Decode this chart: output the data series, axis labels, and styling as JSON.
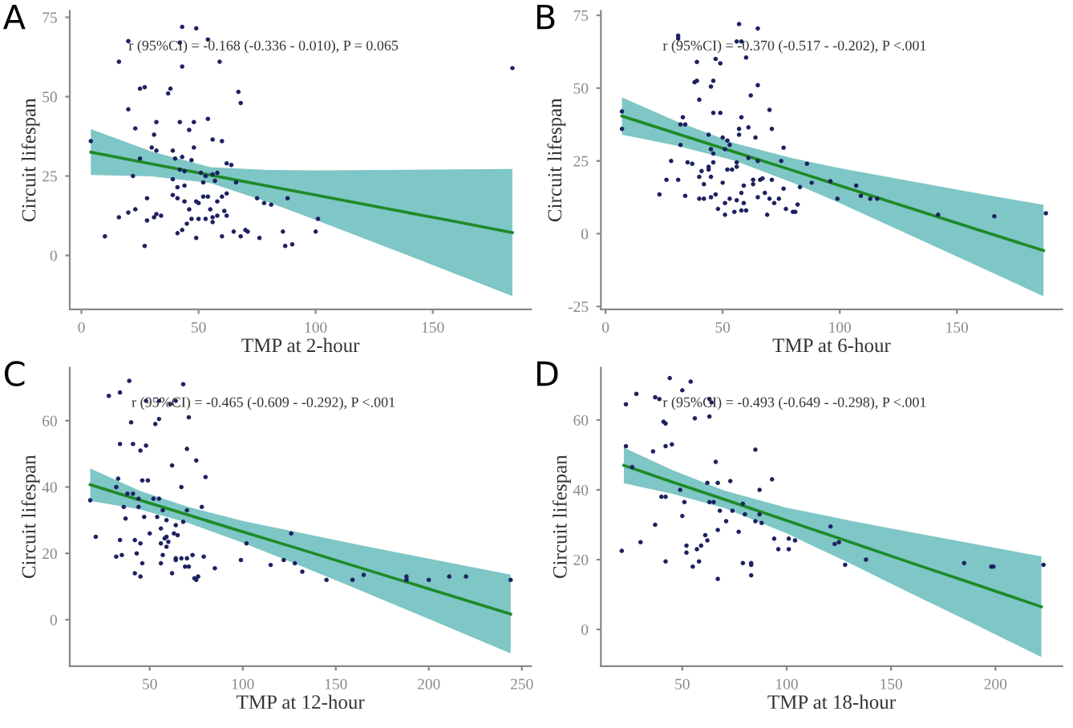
{
  "chart_data": [
    {
      "type": "scatter",
      "title": "A",
      "xlabel": "TMP at 2-hour",
      "ylabel": "Circuit lifespan",
      "annotations": [
        "r (95%CI) = -0.168 (-0.336 - 0.010), P = 0.065"
      ],
      "xlim": [
        -5,
        192
      ],
      "ylim": [
        -17,
        77
      ],
      "xticks": [
        0,
        50,
        100,
        150
      ],
      "yticks": [
        0,
        25,
        50,
        75
      ],
      "series": [
        {
          "color": "#1c2260",
          "marker": "circle",
          "x": [
            4,
            10,
            16,
            20,
            20,
            16,
            20,
            23,
            22,
            23,
            25,
            27,
            25,
            28,
            27,
            28,
            31,
            32,
            30,
            32,
            31,
            32,
            34,
            37,
            38,
            39,
            39,
            39,
            40,
            41,
            41,
            41,
            42,
            42,
            43,
            43,
            42,
            43,
            43,
            44,
            44,
            44,
            45,
            46,
            46,
            47,
            47,
            48,
            48,
            49,
            49,
            49,
            50,
            50,
            51,
            52,
            52,
            53,
            53,
            54,
            54,
            54,
            55,
            56,
            56,
            56,
            56,
            57,
            58,
            58,
            58,
            59,
            60,
            60,
            60,
            61,
            62,
            62,
            62,
            64,
            65,
            66,
            67,
            68,
            68,
            70,
            71,
            76,
            75,
            78,
            81,
            86,
            87,
            88,
            90,
            100,
            101,
            184
          ],
          "values": [
            36,
            6,
            61,
            67.5,
            46,
            12,
            13.5,
            40,
            25,
            14.5,
            52.5,
            53,
            30.5,
            18,
            3,
            11,
            38,
            42,
            34,
            33,
            12,
            13,
            12.5,
            51,
            52.5,
            33,
            24,
            19,
            30.5,
            7,
            18,
            21.5,
            27,
            42,
            31,
            72,
            67,
            59.5,
            8,
            26.5,
            22,
            17,
            10,
            14.5,
            39.5,
            11.5,
            30,
            34,
            42,
            71.5,
            17,
            5.5,
            16.5,
            11.5,
            26,
            23,
            18.5,
            25,
            11.5,
            43,
            68,
            18.5,
            14.5,
            25.5,
            36.5,
            10.5,
            12,
            23.5,
            17,
            26,
            12.5,
            61,
            36,
            6,
            18.5,
            14,
            29,
            12.5,
            19.5,
            28.5,
            7.5,
            23,
            51.5,
            6,
            48,
            8,
            7.5,
            5.5,
            18,
            16.5,
            16,
            7.5,
            3,
            18,
            3.5,
            7.5,
            11.5,
            59
          ]
        },
        {
          "type": "line",
          "color": "#1e8a28",
          "x": [
            4,
            30,
            55,
            80,
            100,
            130,
            160,
            184
          ],
          "values": [
            32.5,
            28.8,
            25.3,
            21.8,
            19.0,
            14.8,
            10.6,
            7.2
          ],
          "lower": [
            25.3,
            24.9,
            22.8,
            16.7,
            11.2,
            2.7,
            -5.9,
            -12.8
          ],
          "upper": [
            39.8,
            32.7,
            27.8,
            26.9,
            26.8,
            26.9,
            27.1,
            27.2
          ]
        }
      ]
    },
    {
      "type": "scatter",
      "title": "B",
      "xlabel": "TMP at 6-hour",
      "ylabel": "Circuit lifespan",
      "annotations": [
        "r (95%CI) = -0.370 (-0.517 - -0.202), P <.001"
      ],
      "xlim": [
        -2,
        195
      ],
      "ylim": [
        -26,
        76.5
      ],
      "xticks": [
        0,
        50,
        100,
        150
      ],
      "yticks": [
        -25,
        0,
        25,
        50,
        75
      ],
      "series": [
        {
          "color": "#1c2260",
          "marker": "circle",
          "x": [
            7,
            7,
            23,
            26,
            28,
            31,
            31,
            31,
            32,
            32,
            33,
            34,
            34,
            35,
            37,
            38,
            39,
            39,
            40,
            40,
            40,
            41,
            42,
            42,
            44,
            44,
            44,
            45,
            45,
            45,
            45,
            46,
            46,
            47,
            46,
            46,
            47,
            48,
            49,
            49,
            50,
            50,
            51,
            51,
            52,
            51,
            52,
            53,
            53,
            54,
            55,
            56,
            56,
            56,
            56,
            57,
            57,
            57,
            58,
            58,
            58,
            58,
            59,
            59,
            60,
            60,
            61,
            61,
            62,
            63,
            63,
            64,
            65,
            65,
            65,
            65,
            66,
            67,
            68,
            69,
            70,
            70,
            71,
            71,
            72,
            74,
            75,
            76,
            76,
            77,
            80,
            81,
            82,
            83,
            86,
            88,
            96,
            99,
            107,
            109,
            113,
            116,
            142,
            166,
            188
          ],
          "values": [
            42,
            36,
            13.5,
            18.5,
            25,
            68,
            67,
            18.5,
            30.5,
            37.5,
            40,
            37.5,
            13,
            24.5,
            24,
            52,
            52.5,
            59,
            46,
            12,
            19.5,
            21.5,
            12,
            17,
            34,
            23,
            22,
            19.5,
            29,
            12.5,
            50.5,
            52.5,
            41.5,
            13.5,
            24.5,
            27.5,
            60,
            8.5,
            58.5,
            41.5,
            17.5,
            33,
            10.5,
            29,
            32,
            6.5,
            22,
            12,
            30.5,
            22,
            7.5,
            66,
            24.5,
            23,
            11.5,
            34,
            36,
            72,
            40,
            14,
            8,
            66,
            10.5,
            16.5,
            8,
            60.5,
            36.5,
            26,
            47.5,
            18.5,
            17,
            33,
            51,
            25,
            12.5,
            70.5,
            18.5,
            19,
            14,
            6.5,
            42.5,
            12,
            18.5,
            36,
            10.5,
            12,
            25,
            29.5,
            15.5,
            8.5,
            7.5,
            7.5,
            10,
            16,
            24,
            17.5,
            18,
            12,
            16.5,
            13,
            12,
            12,
            6.5,
            6,
            7
          ]
        },
        {
          "type": "line",
          "color": "#1e8a28",
          "x": [
            7,
            30,
            55,
            80,
            100,
            130,
            160,
            187
          ],
          "values": [
            40.4,
            34.5,
            28.1,
            21.7,
            16.5,
            8.8,
            1.1,
            -5.8
          ],
          "lower": [
            34.0,
            30.3,
            25.1,
            17.5,
            10.5,
            -0.5,
            -11.5,
            -21.5
          ],
          "upper": [
            46.8,
            38.7,
            31.1,
            25.9,
            22.5,
            18.1,
            13.7,
            9.9
          ]
        }
      ]
    },
    {
      "type": "scatter",
      "title": "C",
      "xlabel": "TMP at 12-hour",
      "ylabel": "Circuit lifespan",
      "annotations": [
        "r (95%CI) = -0.465 (-0.609 - -0.292), P <.001"
      ],
      "xlim": [
        7,
        255
      ],
      "ylim": [
        -14,
        76
      ],
      "xticks": [
        50,
        100,
        150,
        200,
        250
      ],
      "yticks": [
        0,
        20,
        40,
        60
      ],
      "series": [
        {
          "color": "#1c2260",
          "marker": "circle",
          "x": [
            18,
            21,
            28,
            32,
            32,
            33,
            34,
            34,
            34,
            35,
            36,
            37,
            38,
            39,
            40,
            41,
            41,
            42,
            42,
            43,
            44,
            44,
            45,
            45,
            45,
            46,
            46,
            47,
            48,
            48,
            49,
            50,
            52,
            53,
            54,
            55,
            55,
            55,
            56,
            56,
            56,
            57,
            57,
            58,
            59,
            59,
            59,
            60,
            61,
            62,
            62,
            63,
            64,
            64,
            64,
            64,
            65,
            67,
            67,
            68,
            68,
            69,
            70,
            70,
            70,
            71,
            71,
            73,
            74,
            75,
            76,
            75,
            78,
            79,
            80,
            85,
            99,
            102,
            115,
            122,
            126,
            128,
            132,
            145,
            159,
            165,
            188,
            188,
            200,
            211,
            220,
            244
          ],
          "values": [
            36,
            25,
            67.5,
            19,
            40,
            42.5,
            68.5,
            53,
            24,
            19.5,
            34,
            30.5,
            38,
            72,
            59.5,
            53,
            38,
            24,
            14,
            20,
            36.5,
            34,
            23,
            51,
            13,
            42,
            17,
            31,
            66,
            52.5,
            42,
            26,
            36.5,
            59,
            31,
            66,
            60.5,
            36.5,
            27.5,
            23,
            17,
            19.5,
            33,
            24.5,
            25,
            30,
            22,
            23.5,
            65,
            14,
            46.5,
            26,
            28.5,
            18,
            18.5,
            66,
            25.5,
            18.5,
            40,
            71,
            29.5,
            16,
            18.5,
            51.5,
            33,
            16,
            61,
            19.5,
            12.5,
            48,
            13,
            12,
            34,
            19,
            43,
            15.5,
            18,
            23,
            16.5,
            18,
            26,
            17,
            14.5,
            12,
            12,
            13.5,
            13,
            12,
            12,
            13,
            13,
            12
          ]
        },
        {
          "type": "line",
          "color": "#1e8a28",
          "x": [
            18,
            45,
            70,
            100,
            130,
            160,
            200,
            244
          ],
          "values": [
            40.7,
            36.0,
            31.7,
            26.5,
            21.4,
            16.2,
            9.3,
            1.7
          ],
          "lower": [
            35.8,
            33.2,
            29.3,
            23.2,
            16.5,
            9.6,
            0.2,
            -10.2
          ],
          "upper": [
            45.6,
            38.8,
            34.1,
            29.8,
            26.3,
            22.8,
            18.4,
            13.6
          ]
        }
      ]
    },
    {
      "type": "scatter",
      "title": "D",
      "xlabel": "TMP at 18-hour",
      "ylabel": "Circuit lifespan",
      "annotations": [
        "r (95%CI) = -0.493 (-0.649 - -0.298), P <.001"
      ],
      "xlim": [
        11,
        232
      ],
      "ylim": [
        -10.5,
        75
      ],
      "xticks": [
        50,
        100,
        150,
        200
      ],
      "yticks": [
        0,
        20,
        40,
        60
      ],
      "series": [
        {
          "color": "#1c2260",
          "marker": "circle",
          "x": [
            21,
            23,
            23,
            26,
            28,
            30,
            36,
            37,
            37,
            39,
            40,
            41,
            42,
            42,
            42,
            42,
            44,
            45,
            49,
            50,
            50,
            51,
            52,
            52,
            54,
            55,
            56,
            57,
            58,
            59,
            61,
            62,
            62,
            63,
            63,
            64,
            63,
            65,
            66,
            67,
            67,
            67,
            68,
            71,
            73,
            74,
            77,
            79,
            79,
            80,
            83,
            83,
            83,
            85,
            85,
            87,
            87,
            88,
            93,
            94,
            96,
            101,
            101,
            104,
            121,
            123,
            125,
            128,
            138,
            185,
            198,
            199,
            223
          ],
          "values": [
            22.5,
            64.5,
            52.5,
            46.5,
            67.5,
            25,
            51,
            30,
            66.5,
            66,
            38,
            59.5,
            59,
            52.5,
            38,
            19.5,
            72,
            53,
            40,
            32.5,
            68.5,
            36.5,
            24,
            22,
            71,
            18,
            60.5,
            23,
            19.5,
            24,
            27,
            25.5,
            42,
            66,
            36.5,
            65,
            61,
            36.5,
            48,
            14.5,
            42,
            28.5,
            34,
            31,
            42.5,
            34,
            28,
            36,
            19,
            33,
            18.5,
            19,
            15.5,
            31,
            51.5,
            33,
            40,
            30.5,
            43,
            26,
            23,
            23,
            26,
            25.5,
            29.5,
            24.5,
            25,
            18.5,
            20,
            19,
            18,
            18,
            18.5
          ]
        },
        {
          "type": "line",
          "color": "#1e8a28",
          "x": [
            22,
            45,
            70,
            100,
            130,
            160,
            190,
            222
          ],
          "values": [
            47.0,
            42.3,
            37.3,
            31.2,
            25.1,
            19.0,
            13.0,
            6.5
          ],
          "lower": [
            41.9,
            38.9,
            34.8,
            27.5,
            19.0,
            10.2,
            1.5,
            -7.9
          ],
          "upper": [
            52.1,
            45.7,
            39.8,
            34.9,
            31.2,
            27.8,
            24.5,
            20.9
          ]
        }
      ]
    }
  ]
}
